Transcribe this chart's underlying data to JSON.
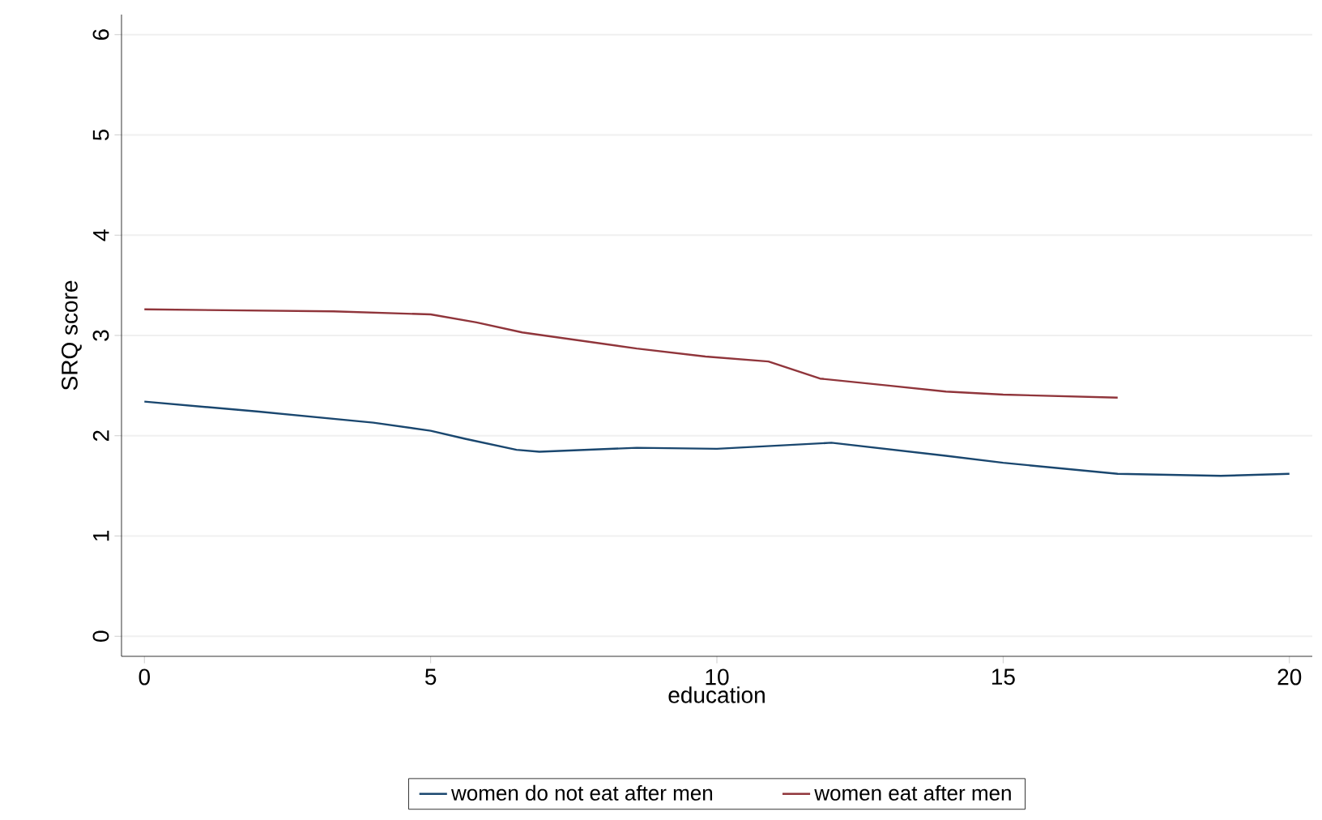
{
  "chart_data": {
    "type": "line",
    "xlabel": "education",
    "ylabel": "SRQ score",
    "xlim": [
      -0.4,
      20.4
    ],
    "ylim": [
      -0.2,
      6.2
    ],
    "xticks": [
      0,
      5,
      10,
      15,
      20
    ],
    "yticks": [
      0,
      1,
      2,
      3,
      4,
      5,
      6
    ],
    "grid": "y",
    "legend": "bottom",
    "line_style": "solid",
    "marker": "none",
    "series": [
      {
        "name": "women do not eat after men",
        "color": "#1a476f",
        "x": [
          0,
          2,
          4,
          5,
          5.6,
          6.5,
          6.9,
          8.6,
          10,
          12,
          14,
          15,
          17,
          18.8,
          20
        ],
        "values": [
          2.34,
          2.24,
          2.13,
          2.05,
          1.97,
          1.86,
          1.84,
          1.88,
          1.87,
          1.93,
          1.8,
          1.73,
          1.62,
          1.6,
          1.62
        ]
      },
      {
        "name": "women eat after men",
        "color": "#90353b",
        "x": [
          0,
          3.3,
          5,
          5.8,
          6.6,
          8.6,
          9.8,
          10.9,
          11.8,
          13,
          14,
          15,
          17
        ],
        "values": [
          3.26,
          3.24,
          3.21,
          3.13,
          3.03,
          2.87,
          2.79,
          2.74,
          2.57,
          2.5,
          2.44,
          2.41,
          2.38
        ]
      }
    ]
  }
}
